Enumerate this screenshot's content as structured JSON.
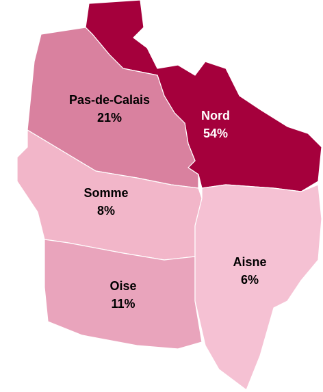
{
  "chart_data": {
    "type": "choropleth",
    "categories": [
      "Nord",
      "Pas-de-Calais",
      "Somme",
      "Oise",
      "Aisne"
    ],
    "values": [
      54,
      21,
      8,
      11,
      6
    ],
    "value_labels": [
      "54%",
      "21%",
      "8%",
      "11%",
      "6%"
    ],
    "colors": [
      "#a5003c",
      "#d9819f",
      "#f2b6c9",
      "#e9a4bc",
      "#f5c1d3"
    ],
    "label_colors": [
      "#ffffff",
      "#000000",
      "#000000",
      "#000000",
      "#000000"
    ]
  }
}
